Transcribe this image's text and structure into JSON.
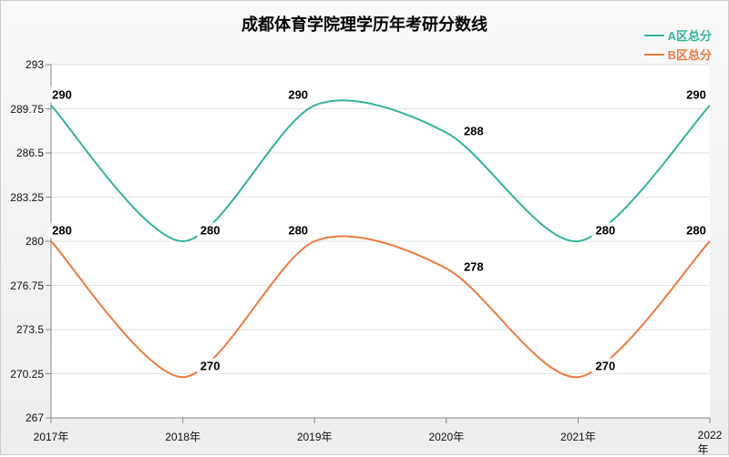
{
  "chart": {
    "type": "line-spline",
    "title": "成都体育学院理学历年考研分数线",
    "title_fontsize": 18,
    "background_gradient": [
      "#f9f9f9",
      "#eeeeee"
    ],
    "plot_background": "#ffffff",
    "grid_color": "#e2e2e2",
    "axis_color": "#888888",
    "tick_color": "#888888",
    "tick_length": 6,
    "categories": [
      "2017年",
      "2018年",
      "2019年",
      "2020年",
      "2021年",
      "2022年"
    ],
    "y_axis": {
      "min": 267,
      "max": 293,
      "ticks": [
        267,
        270.25,
        273.5,
        276.75,
        280,
        283.25,
        286.5,
        289.75,
        293
      ]
    },
    "x_label_fontsize": 12,
    "y_label_fontsize": 12,
    "data_label_fontsize": 13,
    "series": [
      {
        "name": "A区总分",
        "color": "#33b39a",
        "line_width": 2,
        "values": [
          290,
          280,
          290,
          288,
          280,
          290
        ]
      },
      {
        "name": "B区总分",
        "color": "#ec7b3f",
        "line_width": 2,
        "values": [
          280,
          270,
          280,
          278,
          270,
          280
        ]
      }
    ],
    "legend": {
      "position": "top-right",
      "fontsize": 13
    },
    "label_offsets": [
      [
        [
          12,
          0
        ],
        [
          30,
          0
        ],
        [
          -18,
          0
        ],
        [
          30,
          10
        ],
        [
          30,
          0
        ],
        [
          -15,
          0
        ]
      ],
      [
        [
          12,
          0
        ],
        [
          30,
          0
        ],
        [
          -18,
          0
        ],
        [
          30,
          10
        ],
        [
          30,
          0
        ],
        [
          -15,
          0
        ]
      ]
    ]
  }
}
